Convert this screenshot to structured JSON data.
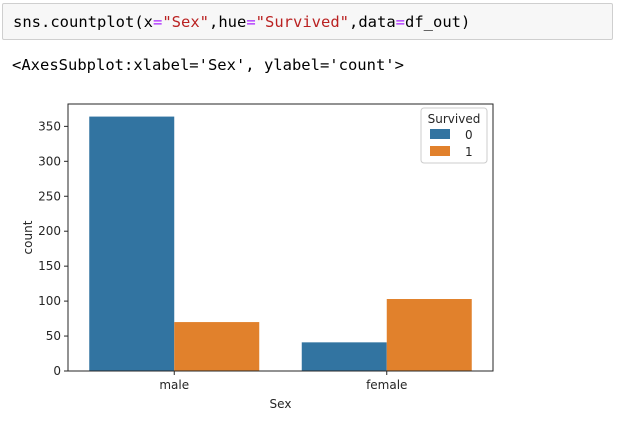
{
  "code_cell": {
    "tokens": [
      {
        "text": "sns.countplot(x",
        "type": "plain"
      },
      {
        "text": "=",
        "type": "op"
      },
      {
        "text": "\"Sex\"",
        "type": "str"
      },
      {
        "text": ",hue",
        "type": "plain"
      },
      {
        "text": "=",
        "type": "op"
      },
      {
        "text": "\"Survived\"",
        "type": "str"
      },
      {
        "text": ",data",
        "type": "plain"
      },
      {
        "text": "=",
        "type": "op"
      },
      {
        "text": "df_out)",
        "type": "plain"
      }
    ]
  },
  "output": {
    "repr_text": "<AxesSubplot:xlabel='Sex', ylabel='count'>"
  },
  "colors": {
    "series0": "#3274a1",
    "series1": "#e1812c",
    "code_string": "#ba2121",
    "code_operator": "#aa22ff"
  },
  "chart_data": {
    "type": "bar",
    "categories": [
      "male",
      "female"
    ],
    "series": [
      {
        "name": "0",
        "values": [
          364,
          41
        ]
      },
      {
        "name": "1",
        "values": [
          70,
          103
        ]
      }
    ],
    "xlabel": "Sex",
    "ylabel": "count",
    "yticks": [
      0,
      50,
      100,
      150,
      200,
      250,
      300,
      350
    ],
    "ylim": [
      0,
      382
    ],
    "legend": {
      "title": "Survived",
      "position": "top-right"
    },
    "grid": false
  }
}
